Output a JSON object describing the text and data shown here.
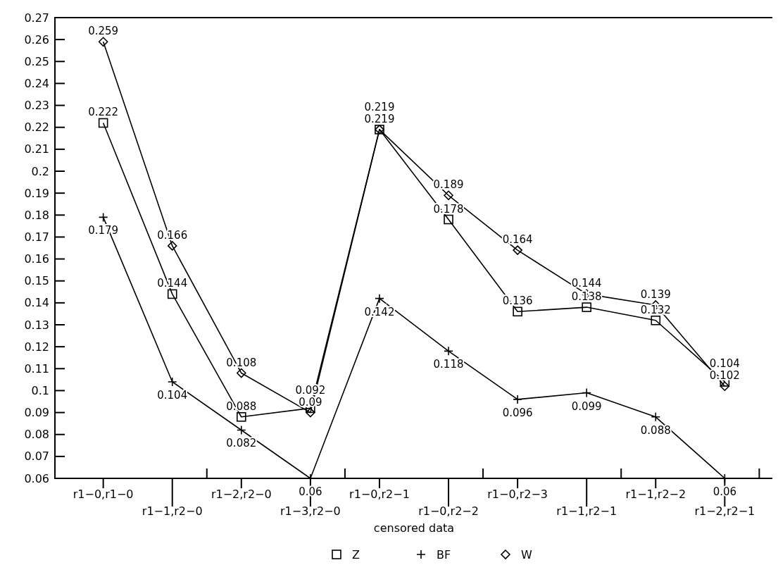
{
  "chart_data": {
    "type": "line",
    "xlabel": "censored data",
    "categories": [
      "r1−0,r1−0",
      "r1−1,r2−0",
      "r1−2,r2−0",
      "r1−3,r2−0",
      "r1−0,r2−1",
      "r1−0,r2−2",
      "r1−0,r2−3",
      "r1−1,r2−1",
      "r1−1,r2−2",
      "r1−2,r2−1"
    ],
    "series": [
      {
        "name": "Z",
        "color": "#000000",
        "marker": "square",
        "values": [
          0.222,
          0.144,
          0.088,
          0.092,
          0.219,
          0.178,
          0.136,
          0.138,
          0.132,
          0.104
        ]
      },
      {
        "name": "BF",
        "color": "#000000",
        "marker": "cross",
        "values": [
          0.179,
          0.104,
          0.082,
          0.06,
          0.142,
          0.118,
          0.096,
          0.099,
          0.088,
          0.06
        ]
      },
      {
        "name": "W",
        "color": "#000000",
        "marker": "diamond",
        "values": [
          0.259,
          0.166,
          0.108,
          0.09,
          0.219,
          0.189,
          0.164,
          0.144,
          0.139,
          0.102
        ]
      }
    ],
    "ylim": [
      0.06,
      0.27
    ],
    "yticks": [
      0.06,
      0.07,
      0.08,
      0.09,
      0.1,
      0.11,
      0.12,
      0.13,
      0.14,
      0.15,
      0.16,
      0.17,
      0.18,
      0.19,
      0.2,
      0.21,
      0.22,
      0.23,
      0.24,
      0.25,
      0.26,
      0.27
    ],
    "data_labels": true,
    "grid": false,
    "legend": "bottom"
  }
}
